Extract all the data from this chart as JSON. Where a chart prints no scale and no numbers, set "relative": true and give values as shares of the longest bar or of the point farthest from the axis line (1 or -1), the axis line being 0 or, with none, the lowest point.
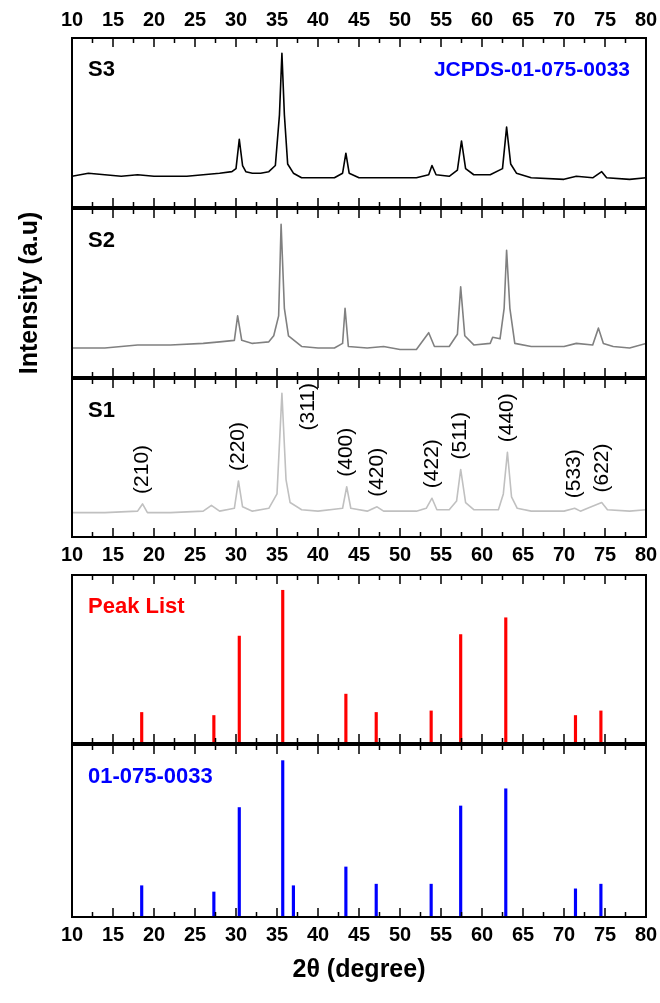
{
  "chart_data": [
    {
      "type": "line",
      "relative": true,
      "tick_labels": "x",
      "xlim": [
        10,
        80
      ],
      "xticks": [
        10,
        {
          "value": 12.5,
          "label": null
        },
        15,
        {
          "value": 17.5,
          "label": null
        },
        20,
        {
          "value": 22.5,
          "label": null
        },
        25,
        {
          "value": 27.5,
          "label": null
        },
        30,
        {
          "value": 32.5,
          "label": null
        },
        35,
        {
          "value": 37.5,
          "label": null
        },
        40,
        {
          "value": 42.5,
          "label": null
        },
        45,
        {
          "value": 47.5,
          "label": null
        },
        50,
        {
          "value": 52.5,
          "label": null
        },
        55,
        {
          "value": 57.5,
          "label": null
        },
        60,
        {
          "value": 62.5,
          "label": null
        },
        65,
        {
          "value": 67.5,
          "label": null
        },
        70,
        {
          "value": 72.5,
          "label": null
        },
        75,
        {
          "value": 77.5,
          "label": null
        },
        80
      ],
      "annotations": [
        "JCPDS-01-075-0033"
      ],
      "series": [
        {
          "name": "S3",
          "color": "#000000",
          "x": [
            10,
            12,
            14,
            16,
            18,
            20,
            22,
            24,
            26,
            28,
            29.5,
            30,
            30.4,
            30.8,
            31.2,
            32,
            33,
            34,
            34.8,
            35.3,
            35.6,
            35.9,
            36.3,
            37,
            38,
            40,
            42,
            43,
            43.4,
            43.8,
            45,
            48,
            52,
            53.5,
            53.9,
            54.4,
            56,
            57,
            57.5,
            58,
            59,
            61,
            62.5,
            63,
            63.5,
            64.2,
            66,
            70,
            71.5,
            73.5,
            74.6,
            75.2,
            78,
            80
          ],
          "values": [
            0.2,
            0.22,
            0.21,
            0.2,
            0.21,
            0.2,
            0.2,
            0.2,
            0.21,
            0.22,
            0.23,
            0.25,
            0.44,
            0.27,
            0.23,
            0.22,
            0.22,
            0.23,
            0.27,
            0.6,
            1,
            0.6,
            0.28,
            0.22,
            0.19,
            0.19,
            0.19,
            0.22,
            0.35,
            0.22,
            0.19,
            0.19,
            0.19,
            0.21,
            0.27,
            0.21,
            0.2,
            0.24,
            0.43,
            0.25,
            0.21,
            0.21,
            0.25,
            0.52,
            0.28,
            0.22,
            0.19,
            0.18,
            0.2,
            0.19,
            0.23,
            0.19,
            0.18,
            0.19
          ]
        }
      ]
    },
    {
      "type": "line",
      "relative": true,
      "tick_labels": false,
      "xlim": [
        10,
        80
      ],
      "xticks": [
        10,
        {
          "value": 12.5,
          "label": null
        },
        15,
        {
          "value": 17.5,
          "label": null
        },
        20,
        {
          "value": 22.5,
          "label": null
        },
        25,
        {
          "value": 27.5,
          "label": null
        },
        30,
        {
          "value": 32.5,
          "label": null
        },
        35,
        {
          "value": 37.5,
          "label": null
        },
        40,
        {
          "value": 42.5,
          "label": null
        },
        45,
        {
          "value": 47.5,
          "label": null
        },
        50,
        {
          "value": 52.5,
          "label": null
        },
        55,
        {
          "value": 57.5,
          "label": null
        },
        60,
        {
          "value": 62.5,
          "label": null
        },
        65,
        {
          "value": 67.5,
          "label": null
        },
        70,
        {
          "value": 72.5,
          "label": null
        },
        75,
        {
          "value": 77.5,
          "label": null
        },
        80
      ],
      "ylabel": "Intensity (a.u)",
      "series": [
        {
          "name": "S2",
          "color": "#808080",
          "x": [
            10,
            14,
            18,
            22,
            26,
            28,
            29.8,
            30.2,
            30.7,
            32,
            34,
            34.6,
            35.2,
            35.5,
            35.9,
            36.4,
            38,
            40,
            42,
            43,
            43.3,
            43.7,
            46,
            48,
            50,
            52,
            53.5,
            54.2,
            56,
            57,
            57.4,
            57.9,
            59,
            61,
            61.3,
            62.2,
            62.7,
            63,
            63.4,
            64,
            66,
            70,
            71.5,
            73.5,
            74.2,
            74.8,
            76,
            78,
            80
          ],
          "values": [
            0.19,
            0.19,
            0.21,
            0.21,
            0.22,
            0.23,
            0.24,
            0.4,
            0.24,
            0.22,
            0.23,
            0.27,
            0.4,
            1,
            0.45,
            0.27,
            0.2,
            0.19,
            0.19,
            0.22,
            0.45,
            0.2,
            0.19,
            0.2,
            0.18,
            0.18,
            0.29,
            0.2,
            0.2,
            0.28,
            0.59,
            0.27,
            0.21,
            0.22,
            0.26,
            0.25,
            0.45,
            0.83,
            0.45,
            0.22,
            0.2,
            0.2,
            0.22,
            0.21,
            0.32,
            0.22,
            0.2,
            0.19,
            0.22
          ]
        }
      ]
    },
    {
      "type": "line",
      "relative": true,
      "tick_labels": "x",
      "xlim": [
        10,
        80
      ],
      "xticks": [
        10,
        {
          "value": 12.5,
          "label": null
        },
        15,
        {
          "value": 17.5,
          "label": null
        },
        20,
        {
          "value": 22.5,
          "label": null
        },
        25,
        {
          "value": 27.5,
          "label": null
        },
        30,
        {
          "value": 32.5,
          "label": null
        },
        35,
        {
          "value": 37.5,
          "label": null
        },
        40,
        {
          "value": 42.5,
          "label": null
        },
        45,
        {
          "value": 47.5,
          "label": null
        },
        50,
        {
          "value": 52.5,
          "label": null
        },
        55,
        {
          "value": 57.5,
          "label": null
        },
        60,
        {
          "value": 62.5,
          "label": null
        },
        65,
        {
          "value": 67.5,
          "label": null
        },
        70,
        {
          "value": 72.5,
          "label": null
        },
        75,
        {
          "value": 77.5,
          "label": null
        },
        80
      ],
      "annotations": [
        {
          "text": "(210)",
          "x": 18.6,
          "y": 0.23
        },
        {
          "text": "(220)",
          "x": 30.3,
          "y": 0.39
        },
        {
          "text": "(311)",
          "x": 35.6,
          "y": 1
        },
        {
          "text": "(400)",
          "x": 43.5,
          "y": 0.35
        },
        {
          "text": "(420)",
          "x": 47.2,
          "y": 0.21
        },
        {
          "text": "(422)",
          "x": 53.9,
          "y": 0.27
        },
        {
          "text": "(511)",
          "x": 57.4,
          "y": 0.47
        },
        {
          "text": "(440)",
          "x": 63.1,
          "y": 0.59
        },
        {
          "text": "(533)",
          "x": 71.3,
          "y": 0.2
        },
        {
          "text": "(622)",
          "x": 74.6,
          "y": 0.24
        }
      ],
      "series": [
        {
          "name": "S1",
          "color": "#c0c0c0",
          "x": [
            10,
            14,
            18,
            18.6,
            19.2,
            22,
            26,
            27,
            28,
            29.8,
            30.3,
            30.8,
            32,
            34,
            35,
            35.6,
            36.1,
            36.6,
            38,
            40,
            43,
            43.5,
            44,
            46,
            47.2,
            48,
            52,
            53.2,
            53.9,
            54.5,
            56,
            56.9,
            57.4,
            58,
            59,
            62,
            62.6,
            63.1,
            63.6,
            64.3,
            66,
            70,
            71.3,
            72,
            74.6,
            75.3,
            78,
            80
          ],
          "values": [
            0.17,
            0.17,
            0.18,
            0.23,
            0.17,
            0.17,
            0.18,
            0.22,
            0.18,
            0.2,
            0.39,
            0.21,
            0.18,
            0.2,
            0.3,
            1,
            0.4,
            0.24,
            0.19,
            0.18,
            0.2,
            0.35,
            0.2,
            0.18,
            0.21,
            0.18,
            0.18,
            0.2,
            0.27,
            0.19,
            0.19,
            0.25,
            0.47,
            0.24,
            0.19,
            0.19,
            0.3,
            0.59,
            0.28,
            0.2,
            0.18,
            0.18,
            0.2,
            0.18,
            0.24,
            0.19,
            0.18,
            0.19
          ]
        }
      ]
    },
    {
      "type": "bar",
      "relative": true,
      "tick_labels": false,
      "xlim": [
        10,
        80
      ],
      "xticks": [
        10,
        {
          "value": 12.5,
          "label": null
        },
        15,
        {
          "value": 17.5,
          "label": null
        },
        20,
        {
          "value": 22.5,
          "label": null
        },
        25,
        {
          "value": 27.5,
          "label": null
        },
        30,
        {
          "value": 32.5,
          "label": null
        },
        35,
        {
          "value": 37.5,
          "label": null
        },
        40,
        {
          "value": 42.5,
          "label": null
        },
        45,
        {
          "value": 47.5,
          "label": null
        },
        50,
        {
          "value": 52.5,
          "label": null
        },
        55,
        {
          "value": 57.5,
          "label": null
        },
        60,
        {
          "value": 62.5,
          "label": null
        },
        65,
        {
          "value": 67.5,
          "label": null
        },
        70,
        {
          "value": 72.5,
          "label": null
        },
        75,
        {
          "value": 77.5,
          "label": null
        },
        80
      ],
      "series": [
        {
          "name": "Peak List",
          "color": "#ff0000",
          "x": [
            18.5,
            27.3,
            30.4,
            35.7,
            43.4,
            47.1,
            53.8,
            57.4,
            62.9,
            71.4,
            74.5
          ],
          "values": [
            0.2,
            0.18,
            0.7,
            1,
            0.32,
            0.2,
            0.21,
            0.71,
            0.82,
            0.18,
            0.21
          ]
        }
      ]
    },
    {
      "type": "bar",
      "relative": true,
      "tick_labels": "x",
      "xlim": [
        10,
        80
      ],
      "xticks": [
        10,
        {
          "value": 12.5,
          "label": null
        },
        15,
        {
          "value": 17.5,
          "label": null
        },
        20,
        {
          "value": 22.5,
          "label": null
        },
        25,
        {
          "value": 27.5,
          "label": null
        },
        30,
        {
          "value": 32.5,
          "label": null
        },
        35,
        {
          "value": 37.5,
          "label": null
        },
        40,
        {
          "value": 42.5,
          "label": null
        },
        45,
        {
          "value": 47.5,
          "label": null
        },
        50,
        {
          "value": 52.5,
          "label": null
        },
        55,
        {
          "value": 57.5,
          "label": null
        },
        60,
        {
          "value": 62.5,
          "label": null
        },
        65,
        {
          "value": 67.5,
          "label": null
        },
        70,
        {
          "value": 72.5,
          "label": null
        },
        75,
        {
          "value": 77.5,
          "label": null
        },
        80
      ],
      "xlabel": "2θ (degree)",
      "series": [
        {
          "name": "01-075-0033",
          "color": "#0000ff",
          "x": [
            18.5,
            27.3,
            30.4,
            35.7,
            37,
            43.4,
            47.1,
            53.8,
            57.4,
            62.9,
            71.4,
            74.5
          ],
          "values": [
            0.2,
            0.16,
            0.7,
            1,
            0.2,
            0.32,
            0.21,
            0.21,
            0.71,
            0.82,
            0.18,
            0.21
          ]
        }
      ]
    }
  ]
}
